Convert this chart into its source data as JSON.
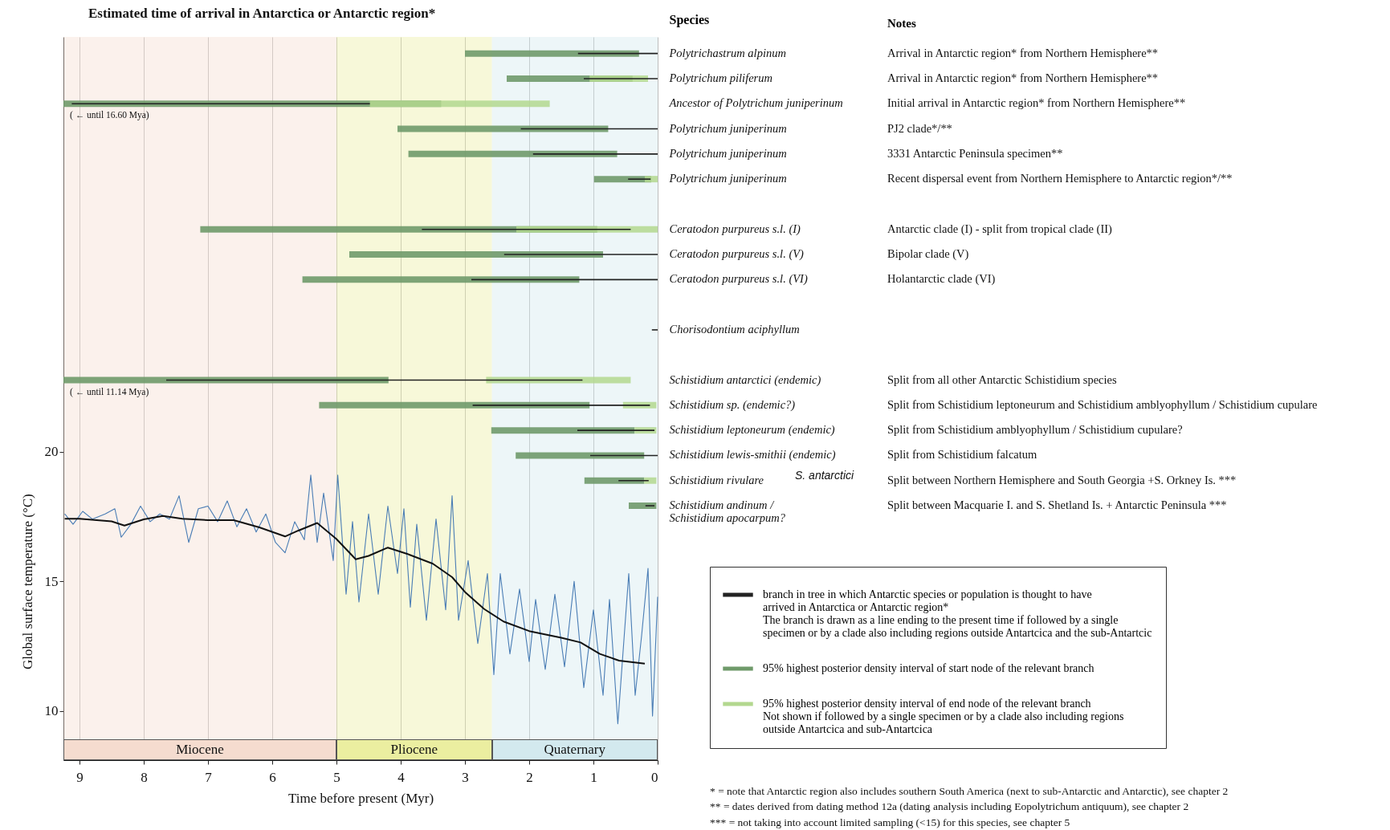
{
  "chart_data": [
    {
      "type": "bar",
      "orientation": "horizontal",
      "title": "Estimated time of arrival in Antarctica or Antarctic region*",
      "ylabel": "Species",
      "xlim": [
        9.25,
        0
      ],
      "tick_labels": "y",
      "legend": "bottom right",
      "categories": [
        "Polytrichastrum alpinum",
        "Polytrichum piliferum",
        "Ancestor of Polytrichum juniperinum",
        "Polytrichum juniperinum",
        "Polytrichum juniperinum",
        "Polytrichum juniperinum",
        null,
        "Ceratodon purpureus s.l. (I)",
        "Ceratodon purpureus s.l. (V)",
        "Ceratodon purpureus s.l. (VI)",
        null,
        "Chorisodontium aciphyllum",
        null,
        "Schistidium antarctici  (endemic)",
        "Schistidium sp.  (endemic?)",
        "Schistidium leptoneurum  (endemic)",
        "Schistidium lewis-smithii  (endemic)",
        "Schistidium rivulare",
        "Schistidium andinum /\nSchistidium apocarpum?"
      ],
      "series": [
        {
          "name": "branch in tree in which Antarctic species or population is thought to have\narrived in Antarctica or Antarctic region*\nThe branch is drawn as a line ending to the present time if followed by a single\nspecimen or by a clade also including regions outside Antartcica and the sub-Antartcic",
          "color": "#222222",
          "base": [
            0,
            0,
            4.48,
            0,
            0,
            0.11,
            null,
            0.42,
            0,
            0,
            null,
            0,
            null,
            1.17,
            0.12,
            0.05,
            0,
            0.14,
            0.05
          ],
          "values": [
            1.24,
            1.15,
            4.64,
            2.13,
            1.94,
            0.35,
            null,
            3.25,
            2.39,
            2.9,
            null,
            0.09,
            null,
            6.48,
            2.76,
            1.2,
            1.05,
            0.47,
            0.14
          ]
        },
        {
          "name": "95% highest posterior density interval of start node of the relevant branch",
          "color": "#6f9a6a",
          "base": [
            0.29,
            0.39,
            3.37,
            0.77,
            0.63,
            0.1,
            null,
            0.94,
            0.85,
            1.22,
            null,
            null,
            null,
            4.19,
            1.06,
            0.36,
            0.21,
            0.21,
            0.02
          ],
          "values": [
            2.71,
            1.96,
            5.88,
            3.28,
            3.25,
            0.89,
            null,
            6.18,
            3.95,
            4.31,
            null,
            null,
            null,
            5.06,
            4.21,
            2.23,
            2.0,
            0.93,
            0.43
          ]
        },
        {
          "name": "95% highest posterior density interval of end node of the relevant branch\nNot shown if followed by a single specimen or by a clade also including regions\noutside Antartcica and sub-Antartcica",
          "color": "#b3d88f",
          "base": [
            null,
            0.15,
            1.68,
            null,
            null,
            0,
            null,
            0,
            null,
            null,
            null,
            null,
            null,
            0.42,
            0.02,
            0.02,
            null,
            0.02,
            null
          ],
          "values": [
            null,
            0.91,
            2.8,
            null,
            null,
            0.2,
            null,
            2.2,
            null,
            null,
            null,
            null,
            null,
            2.25,
            0.52,
            0.34,
            null,
            0.19,
            null
          ]
        }
      ],
      "annotations": [
        "( ← until 16.60 Mya)",
        "( ← until 11.14 Mya)",
        "S. antarctici"
      ]
    },
    {
      "type": "line",
      "xlabel": "Time before present (Myr)",
      "ylabel": "Global surface temperature (°C)",
      "xlim": [
        9.25,
        0
      ],
      "xticks": [
        9,
        8,
        7,
        6,
        5,
        4,
        3,
        2,
        1,
        0
      ],
      "ylim": [
        8.1,
        36
      ],
      "yticks": [
        10,
        15,
        20
      ],
      "grid": "x",
      "bands": [
        {
          "axis": "x",
          "from": 9.25,
          "to": 5,
          "label": "Miocene",
          "color": "#f5dccf"
        },
        {
          "axis": "x",
          "from": 5,
          "to": 2.58,
          "label": "Pliocene",
          "color": "#ebeea0"
        },
        {
          "axis": "x",
          "from": 2.58,
          "to": 0,
          "label": "Quaternary",
          "color": "#d3e9ee"
        }
      ],
      "series": [
        {
          "color": "#4a7db5",
          "x": [
            9.23,
            9.1,
            8.95,
            8.8,
            8.6,
            8.45,
            8.35,
            8.2,
            8.05,
            7.9,
            7.75,
            7.6,
            7.45,
            7.3,
            7.15,
            7.0,
            6.85,
            6.7,
            6.55,
            6.4,
            6.25,
            6.1,
            5.95,
            5.8,
            5.65,
            5.5,
            5.4,
            5.3,
            5.2,
            5.05,
            4.98,
            4.85,
            4.75,
            4.65,
            4.5,
            4.35,
            4.2,
            4.05,
            3.95,
            3.85,
            3.75,
            3.6,
            3.45,
            3.3,
            3.2,
            3.1,
            2.95,
            2.8,
            2.65,
            2.55,
            2.45,
            2.3,
            2.15,
            2.0,
            1.9,
            1.75,
            1.6,
            1.45,
            1.3,
            1.15,
            1.0,
            0.85,
            0.75,
            0.62,
            0.45,
            0.35,
            0.25,
            0.15,
            0.08,
            0.0
          ],
          "values": [
            17.6,
            17.2,
            17.7,
            17.4,
            17.6,
            17.8,
            16.7,
            17.2,
            17.9,
            17.3,
            17.6,
            17.4,
            18.3,
            16.5,
            17.8,
            17.9,
            17.3,
            18.1,
            17.1,
            17.8,
            16.9,
            17.6,
            16.5,
            16.1,
            17.3,
            16.6,
            19.1,
            16.5,
            18.4,
            15.8,
            19.1,
            14.5,
            17.3,
            14.2,
            17.6,
            14.5,
            17.9,
            15.3,
            17.8,
            14.0,
            17.2,
            13.5,
            17.4,
            13.9,
            18.3,
            13.5,
            15.8,
            12.6,
            15.3,
            11.4,
            15.3,
            12.2,
            14.7,
            11.9,
            14.3,
            11.6,
            14.5,
            11.7,
            15.0,
            10.9,
            13.9,
            10.6,
            14.3,
            9.5,
            15.3,
            10.6,
            12.9,
            15.5,
            9.8,
            14.4
          ]
        },
        {
          "color": "#111111",
          "x": [
            9.23,
            9.0,
            8.5,
            8.3,
            8.0,
            7.7,
            7.4,
            7.0,
            6.6,
            6.2,
            5.8,
            5.6,
            5.3,
            5.0,
            4.7,
            4.5,
            4.2,
            3.9,
            3.5,
            3.2,
            3.0,
            2.7,
            2.4,
            2.0,
            1.5,
            1.2,
            0.9,
            0.6,
            0.2
          ],
          "values": [
            17.41,
            17.41,
            17.31,
            17.15,
            17.39,
            17.52,
            17.41,
            17.36,
            17.36,
            17.08,
            16.73,
            16.95,
            17.25,
            16.63,
            15.85,
            15.98,
            16.3,
            16.06,
            15.68,
            15.16,
            14.59,
            13.93,
            13.45,
            13.08,
            12.82,
            12.64,
            12.2,
            11.94,
            11.82
          ]
        }
      ]
    },
    {
      "type": "other",
      "title": "Notes",
      "annotations": [
        "Arrival in Antarctic region* from Northern Hemisphere**",
        "Arrival in Antarctic region* from Northern Hemisphere**",
        "Initial arrival in Antarctic region* from Northern Hemisphere**",
        "PJ2 clade*/**",
        "3331 Antarctic Peninsula specimen**",
        "Recent dispersal event from Northern Hemisphere to Antarctic region*/**",
        "Antarctic clade (I) - split from tropical clade (II)",
        "Bipolar clade (V)",
        "Holantarctic clade (VI)",
        "Split from all other Antarctic Schistidium species",
        "Split from Schistidium leptoneurum and Schistidium amblyophyllum / Schistidium cupulare",
        "Split from Schistidium amblyophyllum / Schistidium cupulare?",
        "Split from Schistidium falcatum",
        "Split between Northern Hemisphere and South Georgia +S. Orkney Is. ***",
        "Split between Macquarie I. and S. Shetland Is. + Antarctic Peninsula ***"
      ]
    },
    {
      "type": "other",
      "annotations": [
        "*  = note that Antarctic region also includes southern South America (next to sub-Antarctic and Antarctic), see chapter 2",
        "**  = dates derived from dating method 12a (dating analysis including Eopolytrichum antiquum), see chapter 2",
        "***  = not taking into account limited sampling (<15) for this species, see chapter 5"
      ]
    }
  ]
}
